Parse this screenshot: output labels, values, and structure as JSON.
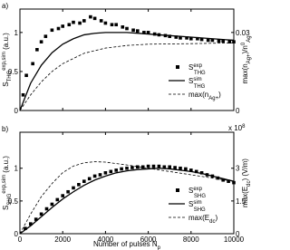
{
  "chart_data": [
    {
      "type": "mixed",
      "panel_label": "a)",
      "ylabel": [
        "S",
        "THG",
        "exp,sim",
        " (a.u.)"
      ],
      "y2label": [
        "max(n",
        "Ag+",
        ")/n",
        "0",
        "Ag"
      ],
      "xlim": [
        0,
        10000
      ],
      "xticks": [
        0,
        2000,
        4000,
        6000,
        8000,
        10000
      ],
      "ylim": [
        0,
        1.3
      ],
      "yticks": [
        0,
        0.5,
        1
      ],
      "y2lim": [
        0,
        0.039
      ],
      "y2ticks": [
        0,
        0.03
      ],
      "legend": "lower right",
      "series": [
        {
          "name": "S",
          "name_sub": "THG",
          "name_sup": "exp",
          "style": "squares",
          "color": "#000000",
          "x": [
            150,
            300,
            600,
            800,
            1000,
            1200,
            1500,
            1800,
            2000,
            2300,
            2500,
            2800,
            3000,
            3300,
            3500,
            3800,
            4000,
            4300,
            4500,
            4800,
            5000,
            5300,
            5500,
            5800,
            6000,
            6300,
            6500,
            6800,
            7000,
            7300,
            7500,
            7800,
            8000,
            8300,
            8500,
            8800,
            9000,
            9300,
            9500,
            9800,
            10000
          ],
          "values": [
            0.2,
            0.45,
            0.6,
            0.78,
            0.88,
            0.95,
            1.03,
            1.05,
            1.08,
            1.1,
            1.13,
            1.12,
            1.15,
            1.2,
            1.18,
            1.15,
            1.12,
            1.1,
            1.1,
            1.07,
            1.05,
            1.03,
            1.02,
            1.0,
            1.0,
            0.98,
            0.97,
            0.96,
            0.95,
            0.94,
            0.93,
            0.93,
            0.92,
            0.92,
            0.91,
            0.9,
            0.9,
            0.89,
            0.89,
            0.88,
            0.88
          ]
        },
        {
          "name": "S",
          "name_sub": "THG",
          "name_sup": "sim",
          "style": "solid",
          "color": "#000000",
          "x": [
            0,
            500,
            1000,
            1500,
            2000,
            2500,
            3000,
            3500,
            4000,
            4500,
            5000,
            5500,
            6000,
            6500,
            7000,
            7500,
            8000,
            8500,
            9000,
            9500,
            10000
          ],
          "values": [
            0,
            0.35,
            0.58,
            0.74,
            0.85,
            0.92,
            0.97,
            0.99,
            1.0,
            1.0,
            1.0,
            0.99,
            0.98,
            0.97,
            0.96,
            0.95,
            0.94,
            0.93,
            0.92,
            0.91,
            0.9
          ]
        },
        {
          "name": "max(n",
          "name_sub": "Ag+",
          "name_after": ")",
          "style": "dashed",
          "color": "#000000",
          "axis": "y2",
          "x": [
            0,
            500,
            1000,
            1500,
            2000,
            2500,
            3000,
            4000,
            5000,
            6000,
            8000,
            10000
          ],
          "values": [
            0,
            0.006,
            0.011,
            0.015,
            0.018,
            0.02,
            0.022,
            0.024,
            0.025,
            0.0255,
            0.0257,
            0.026
          ]
        }
      ]
    },
    {
      "type": "mixed",
      "panel_label": "b)",
      "ylabel": [
        "S",
        "SHG",
        "exp,sim",
        " (a.u.)"
      ],
      "y2label": [
        "max(E",
        "dc",
        ") (V/m)"
      ],
      "y2_multiplier": [
        "x 10",
        "8"
      ],
      "xlabel": [
        "Number of pulses N",
        "p"
      ],
      "xlim": [
        0,
        10000
      ],
      "xticks": [
        0,
        2000,
        4000,
        6000,
        8000,
        10000
      ],
      "ylim": [
        0,
        1.55
      ],
      "yticks": [
        0,
        0.5,
        1
      ],
      "y2lim": [
        0,
        4.65
      ],
      "y2ticks": [
        0,
        1.5,
        3
      ],
      "legend": "lower right",
      "series": [
        {
          "name": "S",
          "name_sub": "SHG",
          "name_sup": "exp",
          "style": "squares",
          "color": "#000000",
          "x": [
            250,
            500,
            750,
            1000,
            1250,
            1500,
            1750,
            2000,
            2250,
            2500,
            2750,
            3000,
            3250,
            3500,
            3750,
            4000,
            4250,
            4500,
            4750,
            5000,
            5250,
            5500,
            5750,
            6000,
            6250,
            6500,
            6750,
            7000,
            7250,
            7500,
            7750,
            8000,
            8250,
            8500,
            8750,
            9000,
            9250,
            9500,
            9750,
            10000
          ],
          "values": [
            0.08,
            0.15,
            0.22,
            0.3,
            0.38,
            0.45,
            0.52,
            0.58,
            0.64,
            0.7,
            0.75,
            0.8,
            0.84,
            0.88,
            0.9,
            0.93,
            0.95,
            0.97,
            0.99,
            1.0,
            1.01,
            1.02,
            1.02,
            1.03,
            1.03,
            1.03,
            1.02,
            1.02,
            1.01,
            1.0,
            0.99,
            0.97,
            0.95,
            0.93,
            0.9,
            0.88,
            0.85,
            0.82,
            0.8,
            0.78
          ]
        },
        {
          "name": "S",
          "name_sub": "SHG",
          "name_sup": "sim",
          "style": "solid",
          "color": "#000000",
          "x": [
            0,
            500,
            1000,
            1500,
            2000,
            2500,
            3000,
            3500,
            4000,
            4500,
            5000,
            5500,
            6000,
            6500,
            7000,
            7500,
            8000,
            8500,
            9000,
            9500,
            10000
          ],
          "values": [
            0,
            0.12,
            0.26,
            0.4,
            0.53,
            0.64,
            0.74,
            0.82,
            0.88,
            0.93,
            0.96,
            0.98,
            0.99,
            1.0,
            0.99,
            0.97,
            0.95,
            0.92,
            0.88,
            0.84,
            0.8
          ]
        },
        {
          "name": "max(E",
          "name_sub": "dc",
          "name_after": ")",
          "style": "dashed",
          "color": "#000000",
          "axis": "y2",
          "x": [
            0,
            500,
            1000,
            1500,
            2000,
            2500,
            3000,
            3500,
            4000,
            5000,
            6000,
            7000,
            8000,
            9000,
            10000
          ],
          "values": [
            0,
            0.9,
            1.7,
            2.3,
            2.8,
            3.1,
            3.25,
            3.3,
            3.28,
            3.15,
            3.0,
            2.85,
            2.7,
            2.55,
            2.4
          ]
        }
      ]
    }
  ]
}
